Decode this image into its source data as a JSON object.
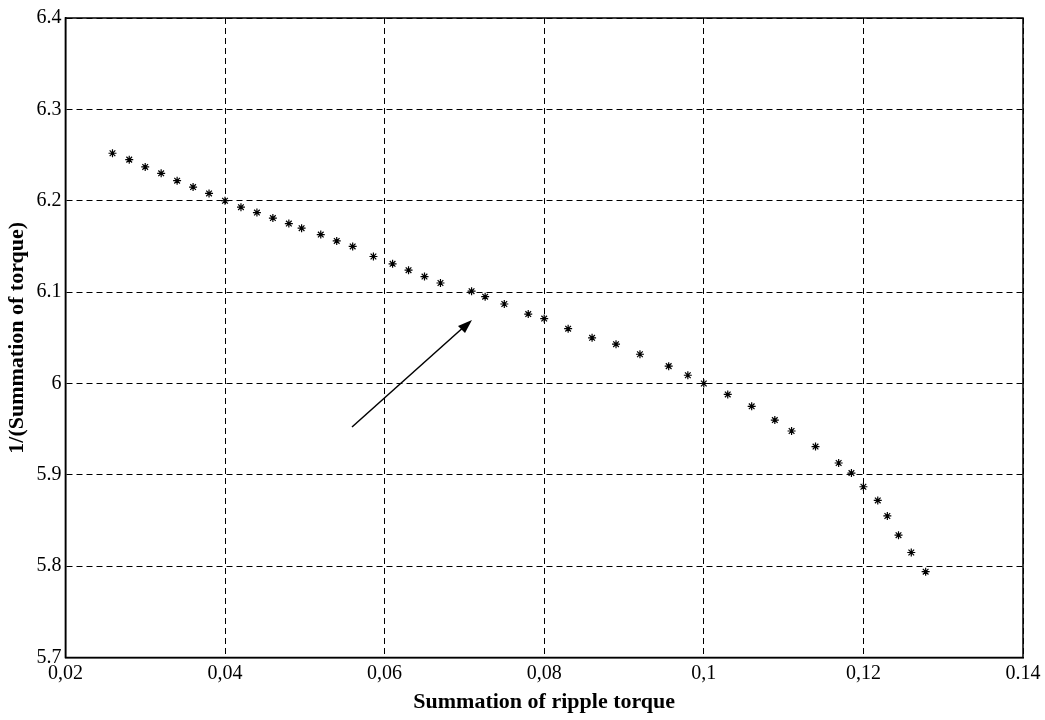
{
  "chart_data": {
    "type": "scatter",
    "xlabel": "Summation of ripple torque",
    "ylabel": "1/(Summation of torque)",
    "xlim": [
      0.02,
      0.14
    ],
    "ylim": [
      5.7,
      6.4
    ],
    "xticks": [
      {
        "value": 0.02,
        "label": "0,02"
      },
      {
        "value": 0.04,
        "label": "0,04"
      },
      {
        "value": 0.06,
        "label": "0,06"
      },
      {
        "value": 0.08,
        "label": "0,08"
      },
      {
        "value": 0.1,
        "label": "0,1"
      },
      {
        "value": 0.12,
        "label": "0,12"
      },
      {
        "value": 0.14,
        "label": "0.14"
      }
    ],
    "yticks": [
      5.7,
      5.8,
      5.9,
      6,
      6.1,
      6.2,
      6.3,
      6.4
    ],
    "grid": true,
    "marker": "cross",
    "series": [
      {
        "color": "#000000",
        "x": [
          0.0259,
          0.028,
          0.03,
          0.032,
          0.034,
          0.036,
          0.038,
          0.04,
          0.042,
          0.044,
          0.046,
          0.048,
          0.0496,
          0.052,
          0.054,
          0.056,
          0.0586,
          0.061,
          0.063,
          0.065,
          0.067,
          0.0709,
          0.0726,
          0.075,
          0.078,
          0.08,
          0.083,
          0.086,
          0.089,
          0.092,
          0.0956,
          0.098,
          0.1,
          0.103,
          0.106,
          0.1089,
          0.111,
          0.114,
          0.1169,
          0.1185,
          0.12,
          0.1218,
          0.123,
          0.1244,
          0.126,
          0.1278
        ],
        "values": [
          6.252,
          6.245,
          6.237,
          6.23,
          6.222,
          6.215,
          6.208,
          6.2,
          6.193,
          6.187,
          6.181,
          6.175,
          6.17,
          6.163,
          6.156,
          6.15,
          6.139,
          6.131,
          6.124,
          6.117,
          6.11,
          6.101,
          6.095,
          6.087,
          6.076,
          6.071,
          6.06,
          6.05,
          6.043,
          6.032,
          6.019,
          6.009,
          6.0,
          5.988,
          5.975,
          5.96,
          5.948,
          5.931,
          5.913,
          5.902,
          5.887,
          5.872,
          5.855,
          5.834,
          5.815,
          5.794
        ]
      }
    ]
  }
}
